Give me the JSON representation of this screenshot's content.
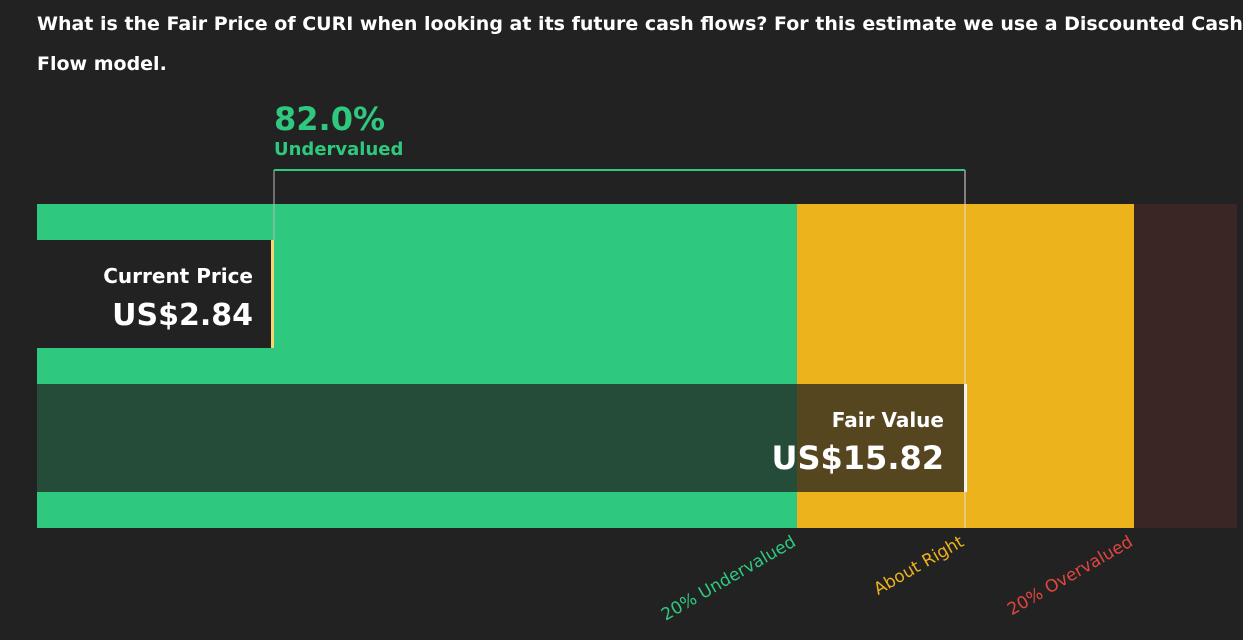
{
  "question": "What is the Fair Price of CURI when looking at its future cash flows? For this estimate we use a Discounted Cash Flow model.",
  "discount": {
    "value": "82.0%",
    "label": "Undervalued"
  },
  "current_price": {
    "label": "Current Price",
    "value": "US$2.84"
  },
  "fair_value": {
    "label": "Fair Value",
    "value": "US$15.82"
  },
  "zones": [
    "20% Undervalued",
    "About Right",
    "20% Overvalued"
  ]
}
